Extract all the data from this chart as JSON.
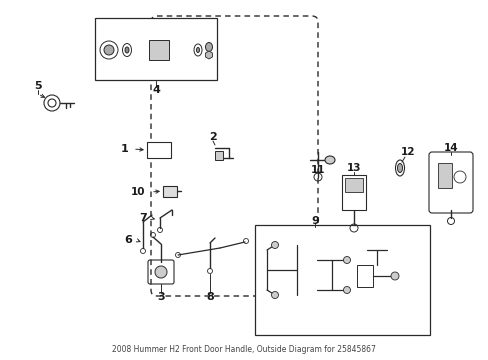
{
  "title": "2008 Hummer H2 Front Door Handle, Outside Diagram for 25845867",
  "bg_color": "#ffffff",
  "line_color": "#2a2a2a",
  "label_color": "#1a1a1a",
  "fig_width": 4.89,
  "fig_height": 3.6,
  "dpi": 100
}
